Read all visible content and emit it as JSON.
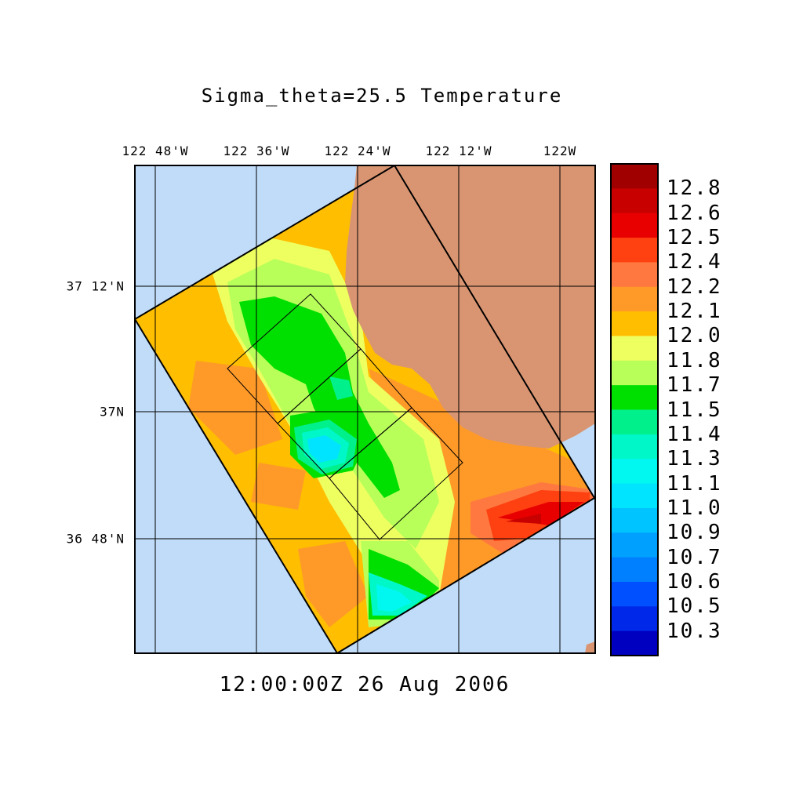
{
  "title": "Sigma_theta=25.5 Temperature",
  "timestamp": "12:00:00Z  26 Aug 2006",
  "map": {
    "lon_labels": [
      "122 48'W",
      "122 36'W",
      "122 24'W",
      "122 12'W",
      "122W"
    ],
    "lat_labels": [
      "37 12'N",
      "37N",
      "36 48'N"
    ],
    "colors": {
      "ocean": "#c0dcf8",
      "land": "#d99572",
      "grid": "#000000"
    }
  },
  "colorbar": {
    "labels": [
      "12.8",
      "12.6",
      "12.5",
      "12.4",
      "12.2",
      "12.1",
      "12.0",
      "11.8",
      "11.7",
      "11.5",
      "11.4",
      "11.3",
      "11.1",
      "11.0",
      "10.9",
      "10.7",
      "10.6",
      "10.5",
      "10.3"
    ],
    "colors": [
      "#a00000",
      "#c80000",
      "#e80000",
      "#ff4010",
      "#ff7840",
      "#ff9a28",
      "#ffbe00",
      "#eeff60",
      "#b8ff5a",
      "#00e000",
      "#00f08c",
      "#00f8c8",
      "#00f8f0",
      "#00e4ff",
      "#00c4ff",
      "#00a0ff",
      "#0080ff",
      "#0050ff",
      "#0028e8",
      "#0000c0"
    ]
  }
}
